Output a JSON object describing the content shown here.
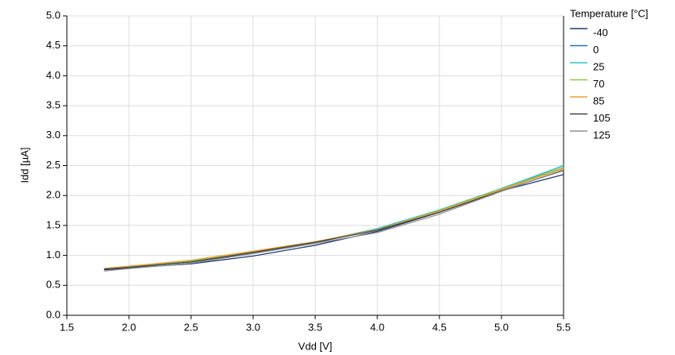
{
  "chart_data": {
    "type": "line",
    "x_label": "Vdd [V]",
    "y_label": "Idd [µA]",
    "legend_title": "Temperature [°C]",
    "legend_position": "right",
    "grid": true,
    "x": [
      1.8,
      2.0,
      2.5,
      3.0,
      3.5,
      4.0,
      4.5,
      5.0,
      5.5
    ],
    "series": [
      {
        "name": "-40",
        "color": "#1f3b73",
        "values": [
          0.76,
          0.79,
          0.86,
          0.99,
          1.17,
          1.4,
          1.72,
          2.08,
          2.35
        ]
      },
      {
        "name": "0",
        "color": "#1f77b4",
        "values": [
          0.78,
          0.81,
          0.89,
          1.04,
          1.21,
          1.44,
          1.74,
          2.11,
          2.5
        ]
      },
      {
        "name": "25",
        "color": "#2ec4c4",
        "values": [
          0.78,
          0.81,
          0.9,
          1.05,
          1.22,
          1.45,
          1.76,
          2.12,
          2.5
        ]
      },
      {
        "name": "70",
        "color": "#8cc63f",
        "values": [
          0.78,
          0.82,
          0.91,
          1.06,
          1.22,
          1.43,
          1.75,
          2.11,
          2.47
        ]
      },
      {
        "name": "85",
        "color": "#f0a030",
        "values": [
          0.78,
          0.82,
          0.92,
          1.07,
          1.23,
          1.43,
          1.74,
          2.1,
          2.45
        ]
      },
      {
        "name": "105",
        "color": "#404040",
        "values": [
          0.77,
          0.8,
          0.89,
          1.05,
          1.22,
          1.42,
          1.72,
          2.08,
          2.42
        ]
      },
      {
        "name": "125",
        "color": "#909090",
        "values": [
          0.74,
          0.78,
          0.87,
          1.03,
          1.2,
          1.38,
          1.69,
          2.07,
          2.43
        ]
      }
    ],
    "xlim": [
      1.5,
      5.5
    ],
    "xticks": [
      1.5,
      {
        "value": 2,
        "label": "2.0"
      },
      2.5,
      {
        "value": 3,
        "label": "3.0"
      },
      3.5,
      {
        "value": 4,
        "label": "4.0"
      },
      4.5,
      {
        "value": 5,
        "label": "5.0"
      },
      5.5
    ],
    "ylim": [
      0,
      5
    ],
    "yticks": [
      {
        "value": 0,
        "label": "0.0"
      },
      0.5,
      {
        "value": 1,
        "label": "1.0"
      },
      1.5,
      {
        "value": 2,
        "label": "2.0"
      },
      2.5,
      {
        "value": 3,
        "label": "3.0"
      },
      3.5,
      {
        "value": 4,
        "label": "4.0"
      },
      4.5,
      {
        "value": 5,
        "label": "5.0"
      }
    ]
  }
}
